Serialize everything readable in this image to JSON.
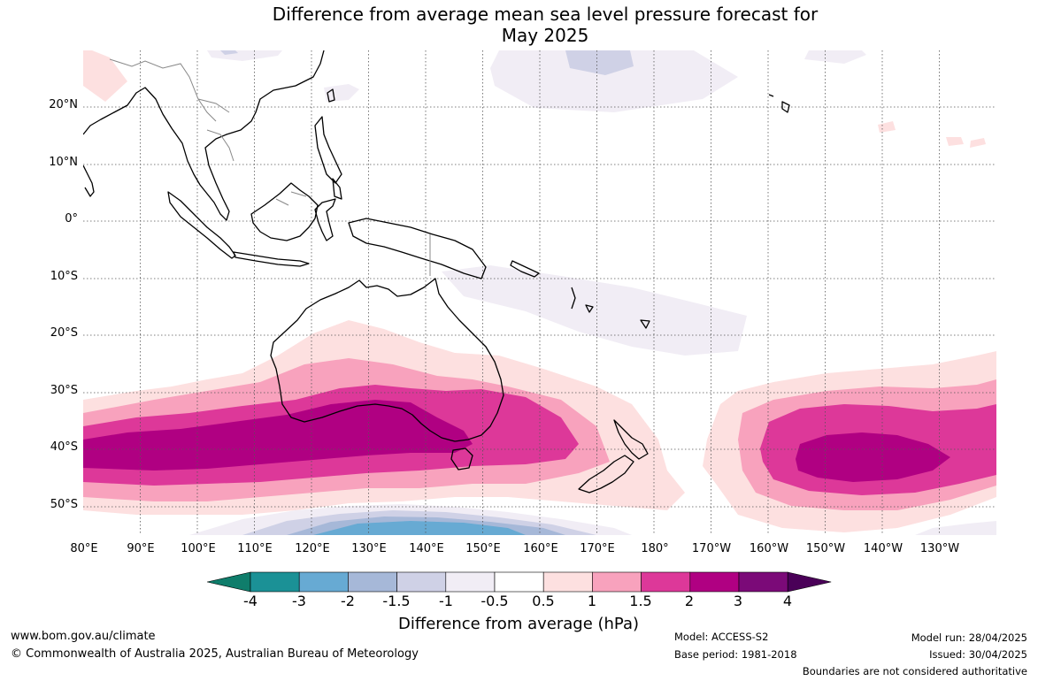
{
  "title": {
    "line1": "Difference from average mean sea level pressure forecast for",
    "line2": "May 2025"
  },
  "map": {
    "lat_labels": [
      "20°N",
      "10°N",
      "0°",
      "10°S",
      "20°S",
      "30°S",
      "40°S",
      "50°S"
    ],
    "lon_labels": [
      "80°E",
      "90°E",
      "100°E",
      "110°E",
      "120°E",
      "130°E",
      "140°E",
      "150°E",
      "160°E",
      "170°E",
      "180°",
      "170°W",
      "160°W",
      "150°W",
      "140°W",
      "130°W"
    ],
    "lat_range": [
      -55,
      30
    ],
    "lon_range": [
      80,
      240
    ],
    "grid": true,
    "anomaly_regions": [
      {
        "name": "southern-high-pressure-band-west",
        "lon": [
          80,
          175
        ],
        "lat": [
          -53,
          -20
        ],
        "peak_hPa": 3,
        "sign": "positive"
      },
      {
        "name": "southern-high-pressure-band-east",
        "lon": [
          190,
          240
        ],
        "lat": [
          -55,
          -27
        ],
        "peak_hPa": 3,
        "sign": "positive"
      },
      {
        "name": "southern-ocean-low",
        "lon": [
          105,
          185
        ],
        "lat": [
          -55,
          -50
        ],
        "peak_hPa": -3,
        "sign": "negative"
      },
      {
        "name": "tropical-pacific-low",
        "lon": [
          141,
          200
        ],
        "lat": [
          -24,
          -9
        ],
        "peak_hPa": -1,
        "sign": "negative"
      },
      {
        "name": "north-pacific-low",
        "lon": [
          150,
          226
        ],
        "lat": [
          10,
          30
        ],
        "peak_hPa": -1.5,
        "sign": "negative"
      }
    ]
  },
  "colorbar": {
    "labels": [
      "-4",
      "-3",
      "-2",
      "-1.5",
      "-1",
      "-0.5",
      "0.5",
      "1",
      "1.5",
      "2",
      "3",
      "4"
    ],
    "colors": [
      "#0f7d6b",
      "#1b9196",
      "#67aad3",
      "#a6b8d8",
      "#cfd1e6",
      "#f1edf5",
      "#ffffff",
      "#fde0e0",
      "#f8a2bd",
      "#dd3899",
      "#b00082",
      "#7b0a78",
      "#4a0058"
    ],
    "title": "Difference from average (hPa)"
  },
  "footer": {
    "website": "www.bom.gov.au/climate",
    "copyright": "© Commonwealth of Australia 2025, Australian Bureau of Meteorology",
    "model": "Model: ACCESS-S2",
    "base_period": "Base period: 1981-2018",
    "model_run": "Model run: 28/04/2025",
    "issued": "Issued: 30/04/2025",
    "disclaimer": "Boundaries are not considered authoritative"
  }
}
